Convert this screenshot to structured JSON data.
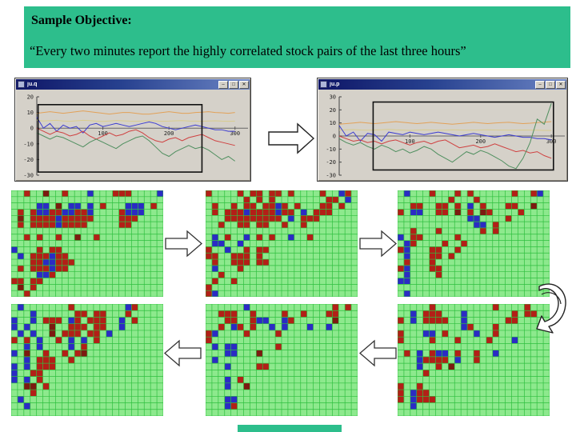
{
  "header": {
    "title": "Sample Objective:",
    "quote": "“Every two minutes report the highly correlated stock pairs of the last three hours”",
    "bg_color": "#2dbe8c"
  },
  "icons": {
    "minimize": "–",
    "maximize": "□",
    "close": "✕"
  },
  "windows": [
    {
      "title": "ju.q"
    },
    {
      "title": "ju.p"
    }
  ],
  "chart_data": [
    {
      "type": "line",
      "title": "ju.q",
      "xlabel": "",
      "ylabel": "",
      "xlim": [
        0,
        310
      ],
      "ylim": [
        -30,
        20
      ],
      "xticks": [
        100,
        200,
        300
      ],
      "yticks": [
        20,
        10,
        0,
        -10,
        -20,
        -30
      ],
      "grid": false,
      "legend": "none",
      "x_step": 10,
      "selection_rect": {
        "x0": 2,
        "x1": 250,
        "y0": -28,
        "y1": 15
      },
      "series": [
        {
          "name": "orange",
          "color": "#e2a158",
          "values": [
            9.5,
            10,
            10.5,
            10,
            9.5,
            10,
            10.5,
            11,
            10.5,
            10,
            9.5,
            9,
            9.5,
            10,
            10,
            9.5,
            9,
            9,
            9.5,
            10,
            10.5,
            10,
            9.5,
            9.5,
            10,
            10.2,
            10.5,
            10,
            9.8,
            9.5,
            10
          ]
        },
        {
          "name": "khaki",
          "color": "#d8cc8e",
          "values": [
            5,
            4.6,
            4.8,
            5,
            4.6,
            4.4,
            4.7,
            5,
            4.8,
            4.5,
            4.3,
            4.6,
            4.9,
            4.7,
            4.5,
            4.4,
            4.6,
            4.8,
            4.6,
            4.4,
            4.5,
            4.7,
            4.8,
            4.6,
            4.5,
            4.4,
            4.6,
            4.7,
            4.5,
            4.4,
            4.5
          ]
        },
        {
          "name": "blue",
          "color": "#3b3bd1",
          "values": [
            7,
            0,
            3,
            -2,
            2,
            0,
            1,
            -3,
            2,
            3,
            1,
            2,
            3,
            2,
            1,
            2,
            3,
            4,
            3,
            1,
            0,
            -1,
            0,
            1,
            2,
            1,
            0,
            -1,
            -1,
            -2,
            -2
          ]
        },
        {
          "name": "red",
          "color": "#cf4040",
          "values": [
            0,
            -2,
            -4,
            -2,
            -3,
            -5,
            -4,
            -2,
            -5,
            -7,
            -5,
            -3,
            -5,
            -4,
            -2,
            -1,
            -3,
            -6,
            -8,
            -9,
            -7,
            -6,
            -8,
            -6,
            -5,
            -4,
            -6,
            -8,
            -9,
            -10,
            -11
          ]
        },
        {
          "name": "green",
          "color": "#4f8f5f",
          "values": [
            -3,
            -5,
            -7,
            -5,
            -6,
            -8,
            -10,
            -12,
            -9,
            -7,
            -9,
            -11,
            -13,
            -10,
            -8,
            -6,
            -5,
            -8,
            -12,
            -16,
            -18,
            -15,
            -13,
            -11,
            -13,
            -12,
            -14,
            -17,
            -20,
            -18,
            -21
          ]
        }
      ]
    },
    {
      "type": "line",
      "title": "ju.p",
      "xlabel": "",
      "ylabel": "",
      "xlim": [
        0,
        310
      ],
      "ylim": [
        -30,
        30
      ],
      "xticks": [
        100,
        200,
        300
      ],
      "yticks": [
        30,
        20,
        10,
        0,
        -10,
        -20,
        -30
      ],
      "grid": false,
      "legend": "none",
      "x_step": 10,
      "selection_rect": {
        "x0": 48,
        "x1": 303,
        "y0": -26,
        "y1": 26
      },
      "series": [
        {
          "name": "orange",
          "color": "#e2a158",
          "values": [
            9,
            9.5,
            10,
            10.5,
            10,
            9.5,
            10,
            10.5,
            11,
            10.5,
            10,
            9.5,
            10,
            10.5,
            10,
            9.5,
            9,
            9.5,
            10,
            10.5,
            10,
            9.5,
            10,
            10.2,
            10.5,
            10,
            9.5,
            9.8,
            10.3,
            10.6,
            11
          ]
        },
        {
          "name": "khaki",
          "color": "#d8cc8e",
          "values": [
            4.5,
            4.7,
            4.9,
            4.6,
            4.4,
            4.6,
            4.8,
            5,
            4.7,
            4.5,
            4.3,
            4.5,
            4.8,
            4.6,
            4.4,
            4.5,
            4.7,
            4.6,
            4.4,
            4.5,
            4.6,
            4.8,
            4.6,
            4.5,
            4.4,
            4.5,
            4.6,
            4.5,
            4.4,
            4.3,
            4.2
          ]
        },
        {
          "name": "blue",
          "color": "#3b3bd1",
          "values": [
            8,
            0,
            3,
            -4,
            2,
            1,
            -4,
            3,
            2,
            1,
            3,
            2,
            1,
            2,
            3,
            2,
            1,
            0,
            1,
            2,
            1,
            0,
            -1,
            0,
            1,
            0,
            -1,
            -1,
            -2,
            -2,
            -3
          ]
        },
        {
          "name": "red",
          "color": "#cf4040",
          "values": [
            0,
            -2,
            -4,
            -3,
            -5,
            -4,
            -6,
            -4,
            -3,
            -5,
            -7,
            -5,
            -4,
            -6,
            -4,
            -3,
            -6,
            -9,
            -8,
            -7,
            -9,
            -8,
            -6,
            -8,
            -10,
            -12,
            -11,
            -13,
            -12,
            -15,
            -17
          ]
        },
        {
          "name": "green",
          "color": "#4f8f5f",
          "values": [
            -2,
            -5,
            -7,
            -5,
            -8,
            -10,
            -7,
            -9,
            -12,
            -10,
            -13,
            -11,
            -8,
            -10,
            -14,
            -17,
            -20,
            -16,
            -12,
            -14,
            -11,
            -13,
            -16,
            -19,
            -23,
            -25,
            -17,
            -5,
            13,
            9,
            25
          ]
        }
      ]
    }
  ],
  "heatmaps": {
    "cols": 24,
    "colors": {
      "bg": "#8de98d",
      "line": "#2fbf3f",
      "r": "#b31f17",
      "b": "#2b2bc4",
      "d": "#7c1a10"
    },
    "grids": [
      {
        "rows": [
          "..r..d..r...b...rrr....b",
          "........................",
          "....bb.d.bb.b.r...bbb.r.",
          ".r.rbbrrbbrrb....rbbb...",
          ".d.rrrrbrrrrr....rrr....",
          ".r.rrrrbrrrr.....rr.....",
          "........................",
          "..r.r..r..d..r..........",
          "........................",
          "b...r.rr................",
          ".b.rrrbrr...............",
          "...rrbbrrr..............",
          ".r.rrrbrr...............",
          "....bbr.................",
          "rr.rr...................",
          ".d.r....................",
          "..r....................."
        ]
      },
      {
        "rows": [
          "r....r.rr.rr.r....r..br.",
          "......r.r.r........rr.b.",
          ".r..r.rr.rrbr.r...rr.r..",
          ".r.rrrbrrrrbrr.b.rrr....",
          "...rrrrrrrrr.b.rrr......",
          "..r..rr.rr..r..r........",
          "........................",
          ".b.r..b.r.r..b..r.......",
          ".bb..b..................",
          "r..b..r.rr..............",
          "rr..rrr.r...............",
          ".r..rrr.rr..............",
          ".b...r..................",
          "..r.....................",
          ".r..r...................",
          "r.......................",
          "rb......................"
        ]
      },
      {
        "rows": [
          ".b...r...r.r......r..rb.",
          "........r...r...........",
          "..rr..rr.r.b.r...rr..d..",
          "r.bb..rr.d.r.dr....r....",
          "...........bb....r......",
          "............bb.r........",
          "..r...r......r.r........",
          "b.rr.....r..............",
          ".br....r..r.............",
          "rb...rr..r..............",
          ".b...rr.r...............",
          ".r...r..................",
          "rb...rr.................",
          ".b....r.................",
          "bb......................",
          "........................",
          ".b......................"
        ]
      },
      {
        "rows": [
          ".b.......r........br....",
          "...b......rr.rr...r.....",
          "b..b.rrr.br.rrr..b.r....",
          "b.b...d..rrr.rr..b......",
          ".b.b..d.rrr.rr.b........",
          "r.r.b..r.b.b.r..........",
          "..b.b....b.r............",
          "b.d..r..r.rd............",
          "..b.rrr..r..............",
          "b.b.rrr.................",
          "b..rr...................",
          "b.b.r...................",
          "..dd.r..................",
          "...r....................",
          ".b......................",
          "..b.....................",
          "........................"
        ]
      },
      {
        "rows": [
          "......b.............r.r.",
          "..rrr..r....r..r...rr...",
          "...rr..rbb..br......d...",
          "..r.br.r..b.b...b..b....",
          "rb....r....r............",
          "r.......................",
          ".b.bb......r............",
          "...bb...d...............",
          ".b......................",
          "...b....rr..............",
          "........................",
          "...b.r..................",
          "...b..d.................",
          "........................",
          "...bb...................",
          "...br...................",
          "........................"
        ]
      },
      {
        "rows": [
          ".....r.........r....r...",
          "..b.rrr...b.......r.rr..",
          "r.b.rrrr..b......rr.....",
          "..........br...r........",
          "r...bb.r....b..r........",
          "r....r...r....r...b.....",
          "........................",
          ".r.b.rbb.r..r..b........",
          "...brrrr.b..r...........",
          "...b..r.d...............",
          "....r...................",
          "........................",
          "r..r....................",
          "r.brr...................",
          "r.brrr..................",
          "..b.....................",
          "........................"
        ]
      }
    ]
  },
  "footer": {
    "bar_color": "#2dbe8c"
  }
}
